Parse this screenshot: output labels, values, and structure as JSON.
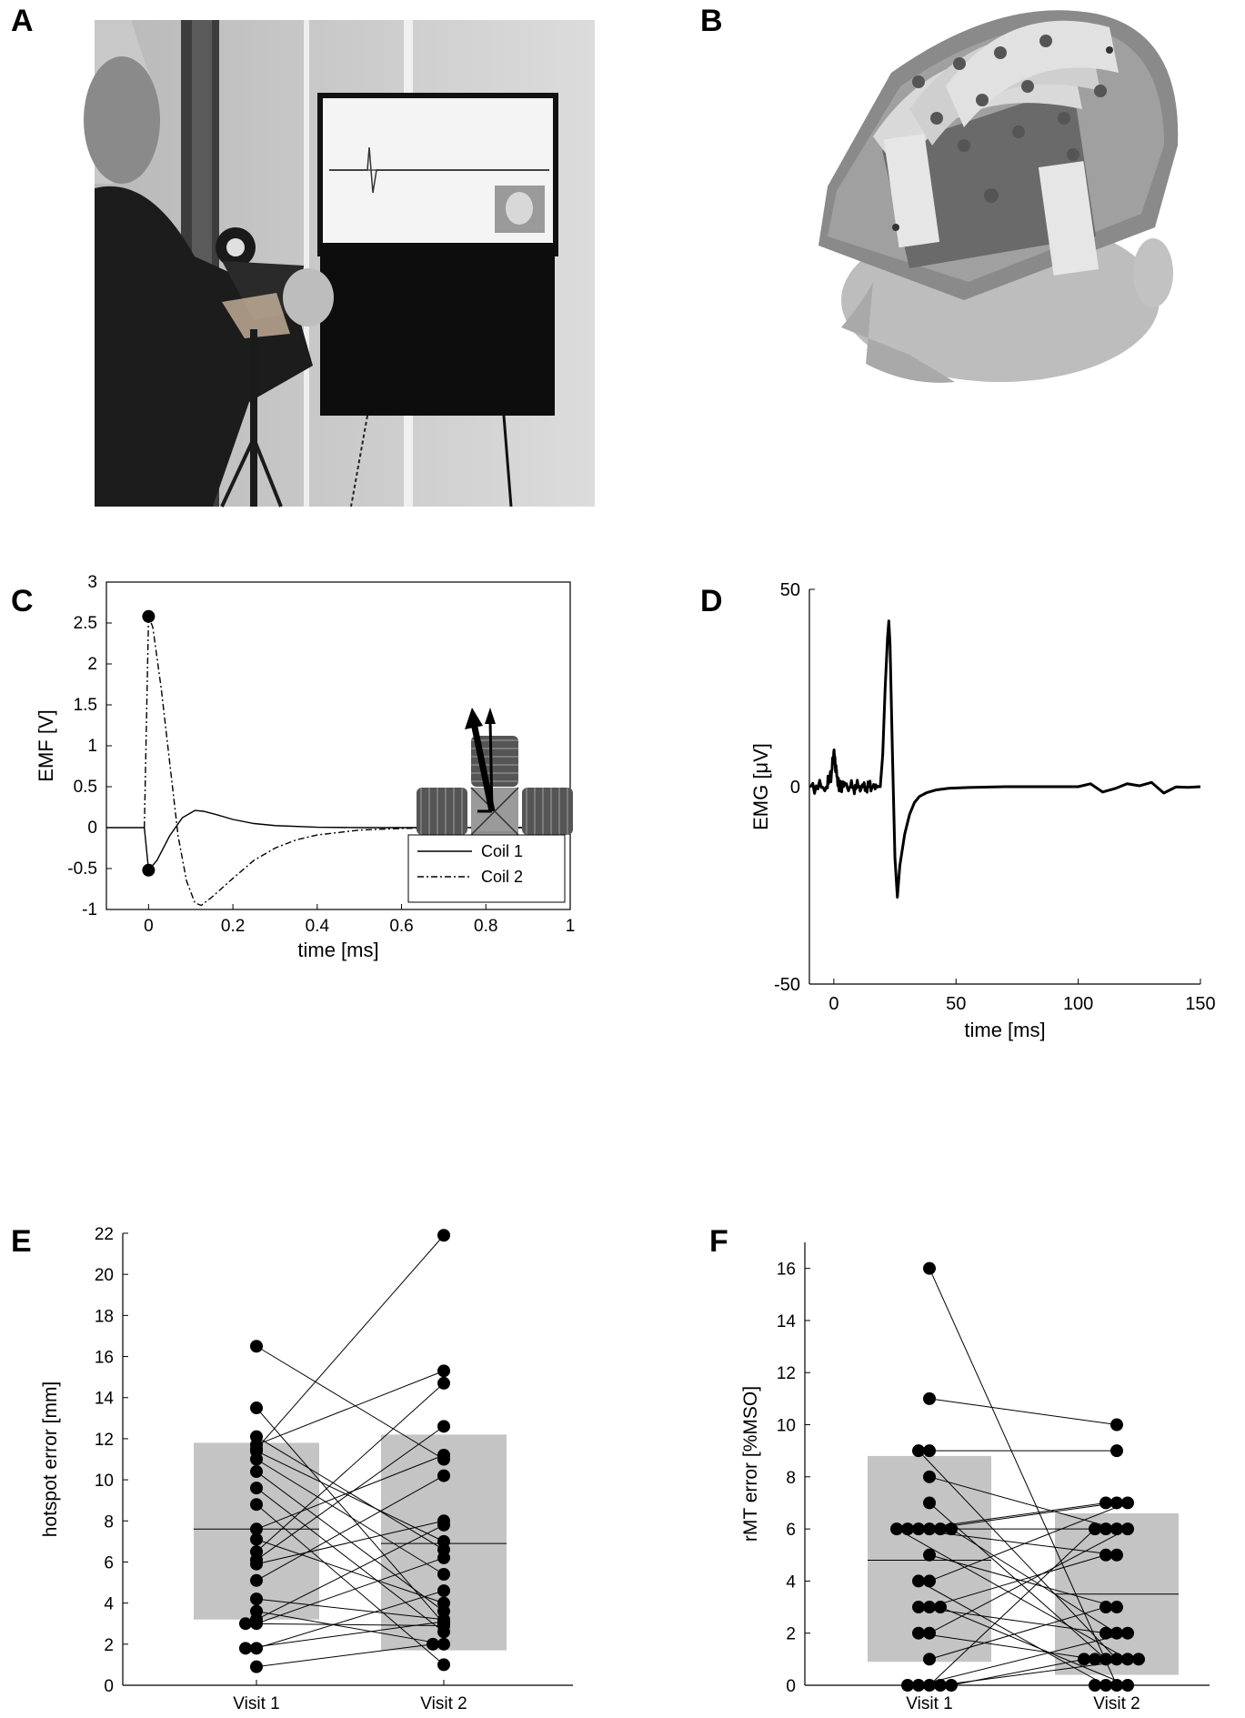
{
  "panels": {
    "a": {
      "letter": "A"
    },
    "b": {
      "letter": "B"
    },
    "c": {
      "letter": "C"
    },
    "d": {
      "letter": "D"
    },
    "e": {
      "letter": "E"
    },
    "f": {
      "letter": "F"
    }
  },
  "chart_data": [
    {
      "panel": "C",
      "type": "line",
      "xlabel": "time [ms]",
      "ylabel": "EMF [V]",
      "xlim": [
        -0.1,
        1.0
      ],
      "ylim": [
        -1,
        3
      ],
      "xticks": [
        "0",
        "0.2",
        "0.4",
        "0.6",
        "0.8",
        "1"
      ],
      "yticks": [
        "-1",
        "-0.5",
        "0",
        "0.5",
        "1",
        "1.5",
        "2",
        "2.5",
        "3"
      ],
      "legend": {
        "placement": "bottom-right",
        "entries": [
          "Coil 1",
          "Coil 2"
        ]
      },
      "series": [
        {
          "name": "Coil 1",
          "style": "solid",
          "x": [
            -0.1,
            -0.01,
            0.0,
            0.02,
            0.05,
            0.08,
            0.11,
            0.13,
            0.16,
            0.2,
            0.25,
            0.3,
            0.4,
            0.5,
            0.6,
            1.0
          ],
          "y": [
            0,
            0,
            -0.52,
            -0.4,
            -0.1,
            0.12,
            0.21,
            0.2,
            0.16,
            0.1,
            0.05,
            0.025,
            0.005,
            0,
            0,
            0
          ]
        },
        {
          "name": "Coil 2",
          "style": "dashdot",
          "x": [
            -0.01,
            0.0,
            0.01,
            0.03,
            0.05,
            0.07,
            0.09,
            0.11,
            0.125,
            0.15,
            0.2,
            0.25,
            0.3,
            0.35,
            0.4,
            0.5,
            0.6,
            0.7,
            1.0
          ],
          "y": [
            0,
            2.58,
            2.45,
            1.7,
            0.8,
            -0.1,
            -0.65,
            -0.92,
            -0.95,
            -0.85,
            -0.62,
            -0.4,
            -0.25,
            -0.15,
            -0.09,
            -0.03,
            -0.01,
            0,
            0
          ]
        }
      ],
      "markers": [
        {
          "x": 0.0,
          "y": 2.58
        },
        {
          "x": 0.0,
          "y": -0.52
        }
      ]
    },
    {
      "panel": "D",
      "type": "line",
      "xlabel": "time [ms]",
      "ylabel": "EMG [μV]",
      "xlim": [
        -10,
        150
      ],
      "ylim": [
        -50,
        50
      ],
      "xticks": [
        "0",
        "50",
        "100",
        "150"
      ],
      "yticks": [
        "-50",
        "0",
        "50"
      ],
      "series": [
        {
          "name": "",
          "x": [
            -10,
            -3,
            -1,
            0,
            1,
            2,
            4,
            8,
            12,
            16,
            19,
            20,
            21,
            22,
            22.5,
            23,
            24,
            25,
            26,
            27,
            29,
            31,
            33,
            35,
            38,
            42,
            47,
            55,
            70,
            85,
            100,
            150
          ],
          "y": [
            0,
            0,
            3,
            9,
            4,
            0,
            0,
            0,
            0,
            0,
            0,
            8,
            25,
            38,
            42,
            36,
            8,
            -18,
            -28,
            -20,
            -12,
            -7,
            -4,
            -2.5,
            -1.5,
            -0.8,
            -0.4,
            -0.2,
            0,
            0,
            0,
            0
          ]
        }
      ]
    },
    {
      "panel": "E",
      "type": "scatter",
      "ylabel": "hotspot error [mm]",
      "categories": [
        "Visit 1",
        "Visit 2"
      ],
      "ylim": [
        0,
        22
      ],
      "yticks": [
        "0",
        "2",
        "4",
        "6",
        "8",
        "10",
        "12",
        "14",
        "16",
        "18",
        "20",
        "22"
      ],
      "bars": [
        {
          "category": "Visit 1",
          "low": 3.2,
          "high": 11.8,
          "median": 7.6
        },
        {
          "category": "Visit 2",
          "low": 1.7,
          "high": 12.2,
          "median": 6.9
        }
      ],
      "pairs": [
        [
          16.5,
          11.0
        ],
        [
          13.5,
          3.0
        ],
        [
          12.1,
          6.6
        ],
        [
          11.7,
          15.3
        ],
        [
          11.5,
          21.9
        ],
        [
          11.4,
          7.0
        ],
        [
          11.0,
          5.4
        ],
        [
          10.4,
          3.6
        ],
        [
          9.6,
          2.6
        ],
        [
          8.8,
          1.0
        ],
        [
          7.6,
          11.2
        ],
        [
          7.1,
          4.0
        ],
        [
          6.5,
          14.7
        ],
        [
          6.1,
          12.6
        ],
        [
          5.9,
          8.0
        ],
        [
          5.1,
          10.2
        ],
        [
          4.2,
          3.2
        ],
        [
          3.6,
          2.0
        ],
        [
          3.2,
          7.8
        ],
        [
          3.0,
          6.2
        ],
        [
          3.0,
          2.9
        ],
        [
          1.8,
          4.6
        ],
        [
          1.8,
          3.1
        ],
        [
          0.9,
          2.0
        ]
      ]
    },
    {
      "panel": "F",
      "type": "scatter",
      "ylabel": "rMT error [%MSO]",
      "categories": [
        "Visit 1",
        "Visit 2"
      ],
      "ylim": [
        0,
        17
      ],
      "yticks": [
        "0",
        "2",
        "4",
        "6",
        "8",
        "10",
        "12",
        "14",
        "16"
      ],
      "bars": [
        {
          "category": "Visit 1",
          "low": 0.9,
          "high": 8.8,
          "median": 4.8
        },
        {
          "category": "Visit 2",
          "low": 0.4,
          "high": 6.6,
          "median": 3.5
        }
      ],
      "pairs": [
        [
          16,
          0
        ],
        [
          11,
          10
        ],
        [
          9,
          9
        ],
        [
          9,
          1
        ],
        [
          8,
          6
        ],
        [
          7,
          1
        ],
        [
          6,
          7
        ],
        [
          6,
          7
        ],
        [
          6,
          6
        ],
        [
          6,
          5
        ],
        [
          6,
          2
        ],
        [
          6,
          1
        ],
        [
          5,
          3
        ],
        [
          4,
          7
        ],
        [
          4,
          0
        ],
        [
          3,
          5
        ],
        [
          3,
          2
        ],
        [
          3,
          0
        ],
        [
          2,
          6
        ],
        [
          2,
          1
        ],
        [
          1,
          3
        ],
        [
          0,
          6
        ],
        [
          0,
          2
        ],
        [
          0,
          1
        ],
        [
          0,
          0
        ],
        [
          0,
          1
        ]
      ]
    }
  ]
}
